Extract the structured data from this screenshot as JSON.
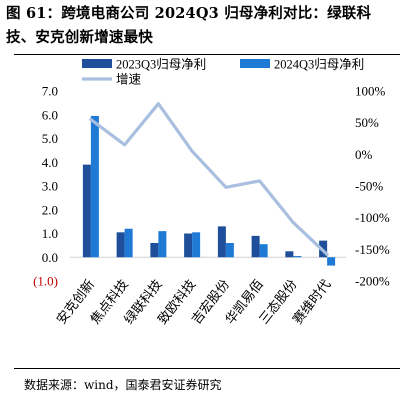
{
  "title": "图 61：跨境电商公司 2024Q3 归母净利对比：绿联科技、安克创新增速最快",
  "source": "数据来源：wind，国泰君安证券研究",
  "colors": {
    "bar_2023": "#1f4e9a",
    "bar_2024": "#1f7ad6",
    "growth_line": "#a8bfe0",
    "negative_tick": "#c00000"
  },
  "chart_data": {
    "type": "bar",
    "categories": [
      "安克创新",
      "焦点科技",
      "绿联科技",
      "致欧科技",
      "吉宏股份",
      "华凯易佰",
      "三态股份",
      "赛维时代"
    ],
    "series": [
      {
        "name": "2023Q3归母净利",
        "type": "bar",
        "axis": "left",
        "values": [
          3.9,
          1.05,
          0.6,
          1.0,
          1.3,
          0.9,
          0.25,
          0.7
        ]
      },
      {
        "name": "2024Q3归母净利",
        "type": "bar",
        "axis": "left",
        "values": [
          5.95,
          1.2,
          1.1,
          1.05,
          0.6,
          0.55,
          0.05,
          -0.35
        ]
      },
      {
        "name": "增速",
        "type": "line",
        "axis": "right",
        "unit": "%",
        "values": [
          55,
          15,
          80,
          5,
          -52,
          -42,
          -108,
          -158
        ]
      }
    ],
    "y_left": {
      "min": -1.0,
      "max": 7.0,
      "step": 1.0,
      "ticks": [
        "(1.0)",
        "0.0",
        "1.0",
        "2.0",
        "3.0",
        "4.0",
        "5.0",
        "6.0",
        "7.0"
      ]
    },
    "y_right": {
      "min": -200,
      "max": 100,
      "step": 50,
      "ticks": [
        "-200%",
        "-150%",
        "-100%",
        "-50%",
        "0%",
        "50%",
        "100%"
      ]
    },
    "legend_position": "top",
    "grid": false
  }
}
